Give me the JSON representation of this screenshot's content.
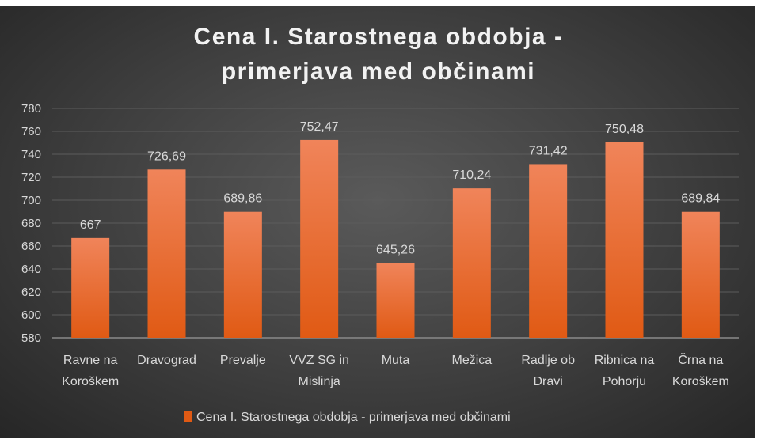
{
  "chart_data": {
    "type": "bar",
    "title": "Cena I. Starostnega obdobja - primerjava med občinami",
    "title_lines": [
      "Cena I. Starostnega obdobja -",
      "primerjava med občinami"
    ],
    "categories": [
      [
        "Ravne na",
        "Koroškem"
      ],
      [
        "Dravograd"
      ],
      [
        "Prevalje"
      ],
      [
        "VVZ SG in",
        "Mislinja"
      ],
      [
        "Muta"
      ],
      [
        "Mežica"
      ],
      [
        "Radlje ob",
        "Dravi"
      ],
      [
        "Ribnica na",
        "Pohorju"
      ],
      [
        "Črna na",
        "Koroškem"
      ]
    ],
    "series": [
      {
        "name": "Cena I. Starostnega obdobja - primerjava med občinami",
        "values": [
          667,
          726.69,
          689.86,
          752.47,
          645.26,
          710.24,
          731.42,
          750.48,
          689.84
        ],
        "labels": [
          "667",
          "726,69",
          "689,86",
          "752,47",
          "645,26",
          "710,24",
          "731,42",
          "750,48",
          "689,84"
        ]
      }
    ],
    "ylim": [
      580,
      780
    ],
    "yticks": [
      580,
      600,
      620,
      640,
      660,
      680,
      700,
      720,
      740,
      760,
      780
    ],
    "grid": true,
    "legend": "bottom",
    "colors": {
      "bar_top": "#f0845a",
      "bar_bottom": "#e05a14",
      "background": "#3e3e3e",
      "text": "#d9d9d9"
    }
  }
}
